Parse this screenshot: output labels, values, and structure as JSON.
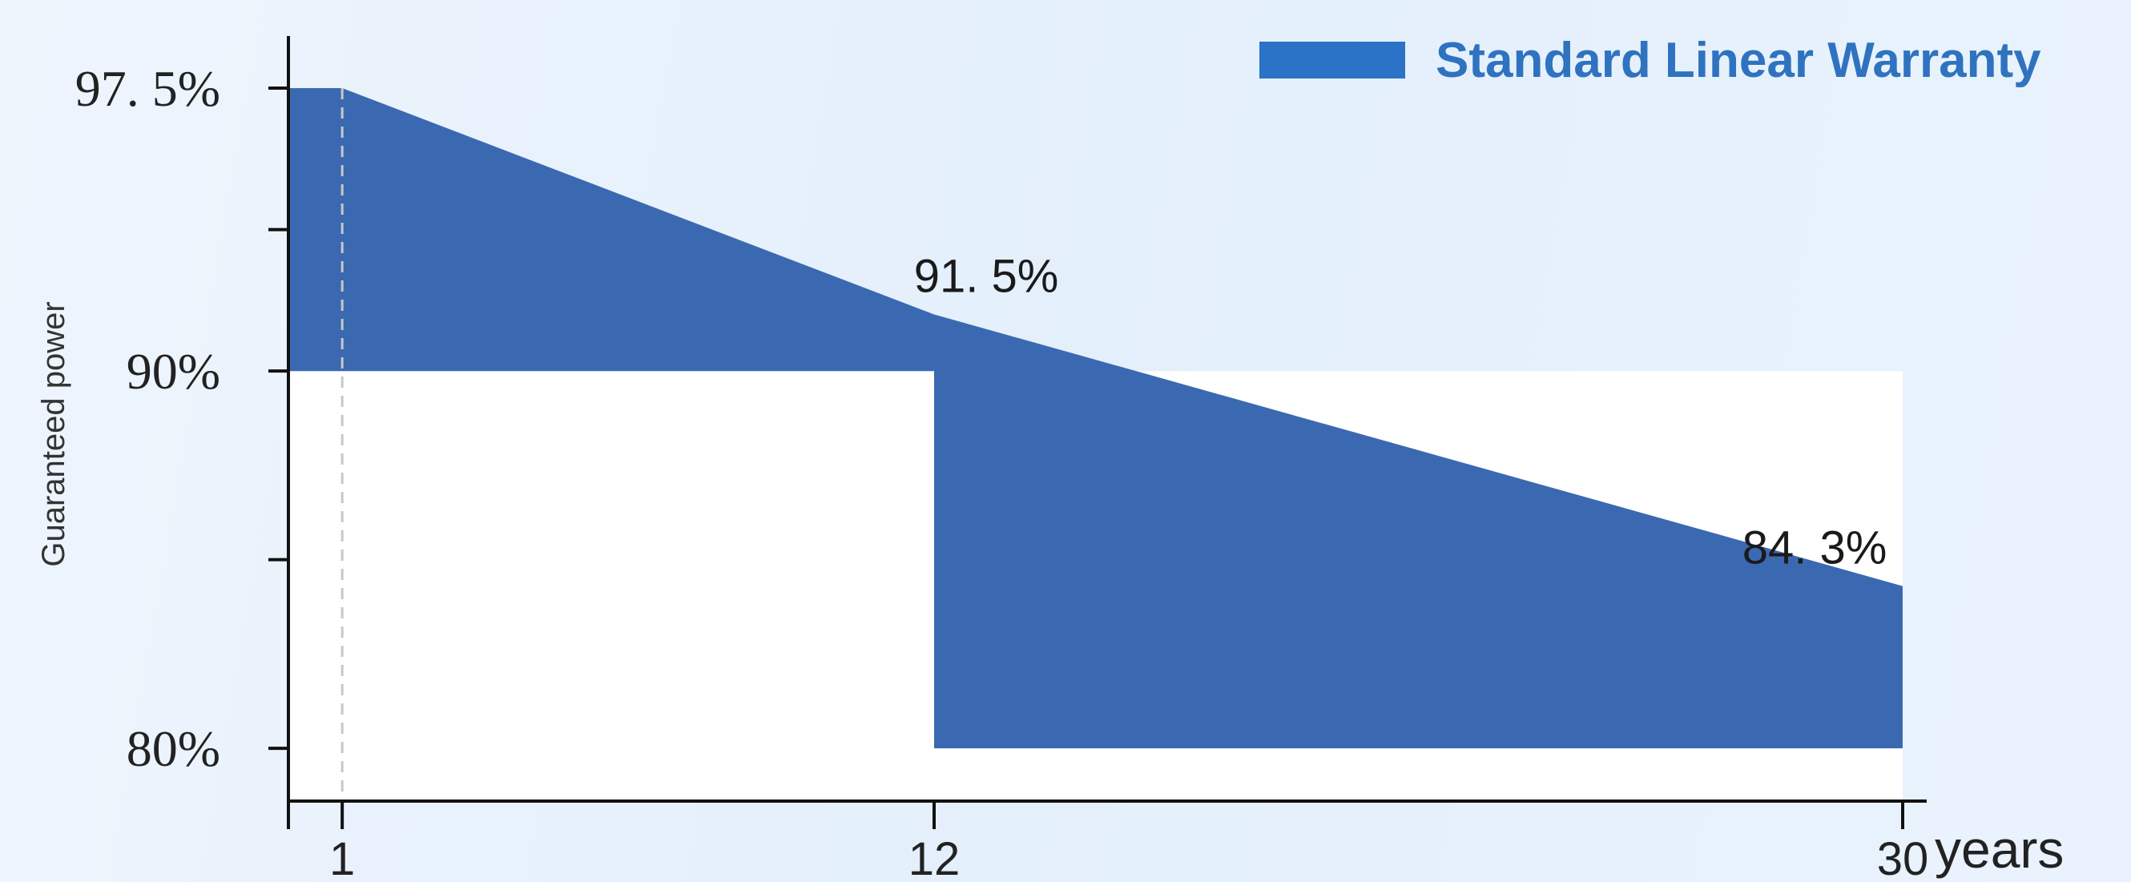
{
  "chart_data": {
    "type": "area",
    "title": "",
    "ylabel": "Guaranteed power",
    "xlabel": "years",
    "x_unit_label": "years",
    "legend": {
      "position": "top-right",
      "entries": [
        "Standard Linear Warranty"
      ]
    },
    "series": [
      {
        "name": "Standard Linear Warranty",
        "color": "#3b69b1",
        "points": [
          {
            "x": 0,
            "y": 97.5
          },
          {
            "x": 1,
            "y": 97.5
          },
          {
            "x": 12,
            "y": 91.5
          },
          {
            "x": 30,
            "y": 84.3
          }
        ]
      }
    ],
    "baseline_steps": [
      {
        "x_from": 0,
        "x_to": 12,
        "y": 90
      },
      {
        "x_from": 12,
        "x_to": 30,
        "y": 80
      }
    ],
    "x_ticks": [
      1,
      12,
      30
    ],
    "y_ticks": [
      80,
      90,
      97.5
    ],
    "y_tick_labels": [
      "80%",
      "90%",
      "97. 5%"
    ],
    "data_labels": [
      {
        "x": 12,
        "y": 91.5,
        "text": "91. 5%"
      },
      {
        "x": 30,
        "y": 84.3,
        "text": "84. 3%"
      }
    ],
    "xlim": [
      0,
      30
    ],
    "ylim": [
      78.6,
      97.5
    ],
    "grid": false
  }
}
